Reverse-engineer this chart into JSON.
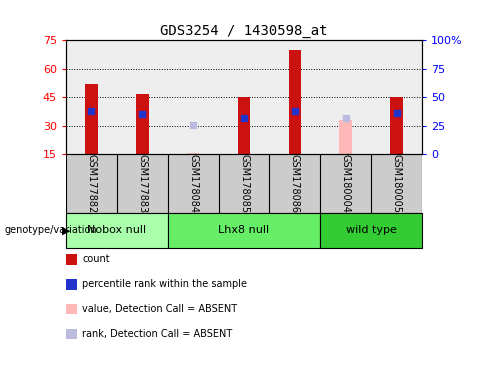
{
  "title": "GDS3254 / 1430598_at",
  "samples": [
    "GSM177882",
    "GSM177883",
    "GSM178084",
    "GSM178085",
    "GSM178086",
    "GSM180004",
    "GSM180005"
  ],
  "counts": [
    52,
    47,
    15.5,
    45,
    70,
    33,
    45
  ],
  "percentile_ranks": [
    38,
    35,
    null,
    32,
    38,
    null,
    36
  ],
  "absent": [
    false,
    false,
    true,
    false,
    false,
    true,
    false
  ],
  "absent_rank": [
    null,
    null,
    26,
    null,
    null,
    32,
    null
  ],
  "ylim_left": [
    15,
    75
  ],
  "ylim_right": [
    0,
    100
  ],
  "yticks_left": [
    15,
    30,
    45,
    60,
    75
  ],
  "yticks_right": [
    0,
    25,
    50,
    75,
    100
  ],
  "ytick_labels_right": [
    "0",
    "25",
    "50",
    "75",
    "100%"
  ],
  "bar_color": "#CC1111",
  "absent_bar_color": "#FFB8B8",
  "rank_color": "#2233CC",
  "absent_rank_color": "#BBBBDD",
  "bar_width": 0.25,
  "groups": [
    {
      "label": "Nobox null",
      "indices": [
        0,
        1
      ],
      "color": "#AAFFAA"
    },
    {
      "label": "Lhx8 null",
      "indices": [
        2,
        3,
        4
      ],
      "color": "#66EE66"
    },
    {
      "label": "wild type",
      "indices": [
        5,
        6
      ],
      "color": "#33CC33"
    }
  ],
  "legend_items": [
    {
      "label": "count",
      "color": "#CC1111"
    },
    {
      "label": "percentile rank within the sample",
      "color": "#2233CC"
    },
    {
      "label": "value, Detection Call = ABSENT",
      "color": "#FFB8B8"
    },
    {
      "label": "rank, Detection Call = ABSENT",
      "color": "#BBBBDD"
    }
  ],
  "background_color": "#FFFFFF",
  "plot_bg_color": "#EEEEEE",
  "label_bg_color": "#CCCCCC"
}
